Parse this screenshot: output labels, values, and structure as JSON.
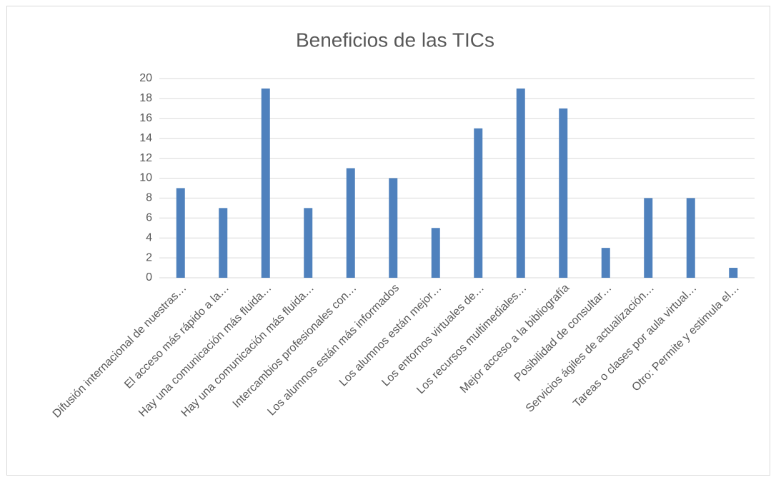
{
  "chart_data": {
    "type": "bar",
    "title": "Beneficios de las TICs",
    "categories": [
      "Difusión internacional de nuestras…",
      "El acceso más rápido a la…",
      "Hay una comunicación más fluida…",
      "Hay una comunicación más fluida…",
      "Intercambios profesionales con…",
      "Los alumnos están más informados",
      "Los alumnos están mejor…",
      "Los entornos virtuales de…",
      "Los recursos multimediales…",
      "Mejor acceso a la bibliografía",
      "Posibilidad de consultar…",
      "Servicios ágiles de actualización…",
      "Tareas o clases por aula virtual…",
      "Otro: Permite y estimula el…"
    ],
    "values": [
      9,
      7,
      19,
      7,
      11,
      10,
      5,
      15,
      19,
      17,
      3,
      8,
      8,
      1
    ],
    "color": "#4f81bd",
    "ylim": [
      0,
      20
    ],
    "yticks": [
      0,
      2,
      4,
      6,
      8,
      10,
      12,
      14,
      16,
      18,
      20
    ],
    "grid": true
  }
}
